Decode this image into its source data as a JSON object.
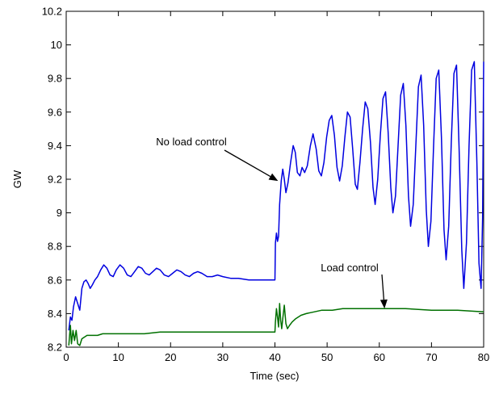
{
  "chart_data": {
    "type": "line",
    "title": "",
    "xlabel": "Time (sec)",
    "ylabel": "GW",
    "xlim": [
      0,
      80
    ],
    "ylim": [
      8.2,
      10.2
    ],
    "xticks": [
      "0",
      "10",
      "20",
      "30",
      "40",
      "50",
      "60",
      "70",
      "80"
    ],
    "yticks": [
      "8.2",
      "8.4",
      "8.6",
      "8.8",
      "9",
      "9.2",
      "9.4",
      "9.6",
      "9.8",
      "10",
      "10.2"
    ],
    "grid": false,
    "annotations": [
      {
        "text": "No load control",
        "target_series": "no_load_control",
        "point": [
          40.6,
          9.19
        ]
      },
      {
        "text": "Load control",
        "target_series": "load_control",
        "point": [
          61,
          8.43
        ]
      }
    ],
    "series": [
      {
        "key": "no_load_control",
        "color": "#0000e0",
        "points": [
          [
            0.5,
            8.3
          ],
          [
            0.8,
            8.38
          ],
          [
            1.1,
            8.36
          ],
          [
            1.4,
            8.44
          ],
          [
            1.8,
            8.5
          ],
          [
            2.2,
            8.46
          ],
          [
            2.6,
            8.42
          ],
          [
            3.0,
            8.55
          ],
          [
            3.4,
            8.59
          ],
          [
            3.8,
            8.6
          ],
          [
            4.2,
            8.58
          ],
          [
            4.6,
            8.55
          ],
          [
            5.0,
            8.57
          ],
          [
            5.5,
            8.6
          ],
          [
            6.0,
            8.62
          ],
          [
            6.6,
            8.66
          ],
          [
            7.2,
            8.69
          ],
          [
            7.8,
            8.67
          ],
          [
            8.4,
            8.63
          ],
          [
            9.0,
            8.62
          ],
          [
            9.6,
            8.66
          ],
          [
            10.3,
            8.69
          ],
          [
            11.0,
            8.67
          ],
          [
            11.7,
            8.63
          ],
          [
            12.4,
            8.62
          ],
          [
            13.1,
            8.65
          ],
          [
            13.8,
            8.68
          ],
          [
            14.5,
            8.67
          ],
          [
            15.2,
            8.64
          ],
          [
            15.9,
            8.63
          ],
          [
            16.6,
            8.65
          ],
          [
            17.3,
            8.67
          ],
          [
            18.0,
            8.66
          ],
          [
            18.8,
            8.63
          ],
          [
            19.6,
            8.62
          ],
          [
            20.4,
            8.64
          ],
          [
            21.2,
            8.66
          ],
          [
            22.0,
            8.65
          ],
          [
            22.8,
            8.63
          ],
          [
            23.6,
            8.62
          ],
          [
            24.4,
            8.64
          ],
          [
            25.2,
            8.65
          ],
          [
            26.0,
            8.64
          ],
          [
            27.0,
            8.62
          ],
          [
            28.0,
            8.62
          ],
          [
            29.0,
            8.63
          ],
          [
            30.0,
            8.62
          ],
          [
            31.5,
            8.61
          ],
          [
            33.0,
            8.61
          ],
          [
            35.0,
            8.6
          ],
          [
            37.0,
            8.6
          ],
          [
            39.0,
            8.6
          ],
          [
            40.0,
            8.6
          ],
          [
            40.1,
            8.82
          ],
          [
            40.3,
            8.88
          ],
          [
            40.5,
            8.83
          ],
          [
            40.7,
            8.86
          ],
          [
            40.9,
            9.05
          ],
          [
            41.2,
            9.19
          ],
          [
            41.5,
            9.26
          ],
          [
            41.8,
            9.2
          ],
          [
            42.1,
            9.12
          ],
          [
            42.5,
            9.18
          ],
          [
            43.0,
            9.3
          ],
          [
            43.5,
            9.4
          ],
          [
            43.9,
            9.36
          ],
          [
            44.3,
            9.24
          ],
          [
            44.8,
            9.22
          ],
          [
            45.2,
            9.27
          ],
          [
            45.7,
            9.24
          ],
          [
            46.2,
            9.28
          ],
          [
            46.8,
            9.4
          ],
          [
            47.3,
            9.47
          ],
          [
            47.9,
            9.38
          ],
          [
            48.4,
            9.25
          ],
          [
            48.9,
            9.22
          ],
          [
            49.4,
            9.3
          ],
          [
            49.9,
            9.45
          ],
          [
            50.4,
            9.55
          ],
          [
            50.9,
            9.58
          ],
          [
            51.4,
            9.46
          ],
          [
            51.9,
            9.27
          ],
          [
            52.4,
            9.19
          ],
          [
            52.9,
            9.28
          ],
          [
            53.4,
            9.45
          ],
          [
            53.9,
            9.6
          ],
          [
            54.4,
            9.57
          ],
          [
            54.9,
            9.38
          ],
          [
            55.4,
            9.17
          ],
          [
            55.8,
            9.14
          ],
          [
            56.3,
            9.3
          ],
          [
            56.8,
            9.5
          ],
          [
            57.3,
            9.66
          ],
          [
            57.8,
            9.62
          ],
          [
            58.3,
            9.42
          ],
          [
            58.8,
            9.15
          ],
          [
            59.2,
            9.05
          ],
          [
            59.7,
            9.2
          ],
          [
            60.2,
            9.46
          ],
          [
            60.7,
            9.68
          ],
          [
            61.2,
            9.72
          ],
          [
            61.7,
            9.48
          ],
          [
            62.2,
            9.15
          ],
          [
            62.6,
            9.0
          ],
          [
            63.1,
            9.1
          ],
          [
            63.6,
            9.4
          ],
          [
            64.1,
            9.7
          ],
          [
            64.6,
            9.77
          ],
          [
            65.1,
            9.52
          ],
          [
            65.6,
            9.1
          ],
          [
            66.0,
            8.92
          ],
          [
            66.5,
            9.05
          ],
          [
            67.0,
            9.4
          ],
          [
            67.5,
            9.75
          ],
          [
            68.0,
            9.82
          ],
          [
            68.5,
            9.52
          ],
          [
            69.0,
            9.02
          ],
          [
            69.4,
            8.8
          ],
          [
            69.9,
            8.95
          ],
          [
            70.4,
            9.4
          ],
          [
            70.9,
            9.8
          ],
          [
            71.4,
            9.85
          ],
          [
            71.9,
            9.45
          ],
          [
            72.4,
            8.9
          ],
          [
            72.8,
            8.72
          ],
          [
            73.3,
            8.92
          ],
          [
            73.8,
            9.42
          ],
          [
            74.3,
            9.83
          ],
          [
            74.8,
            9.88
          ],
          [
            75.3,
            9.38
          ],
          [
            75.8,
            8.78
          ],
          [
            76.2,
            8.55
          ],
          [
            76.7,
            8.82
          ],
          [
            77.2,
            9.4
          ],
          [
            77.7,
            9.85
          ],
          [
            78.2,
            9.9
          ],
          [
            78.7,
            9.3
          ],
          [
            79.1,
            8.7
          ],
          [
            79.5,
            8.55
          ],
          [
            79.8,
            8.97
          ],
          [
            80.0,
            9.9
          ]
        ]
      },
      {
        "key": "load_control",
        "color": "#007000",
        "points": [
          [
            0.5,
            8.21
          ],
          [
            0.8,
            8.33
          ],
          [
            1.0,
            8.22
          ],
          [
            1.3,
            8.3
          ],
          [
            1.6,
            8.24
          ],
          [
            1.9,
            8.3
          ],
          [
            2.2,
            8.22
          ],
          [
            2.6,
            8.21
          ],
          [
            3.0,
            8.25
          ],
          [
            3.5,
            8.26
          ],
          [
            4.0,
            8.27
          ],
          [
            5.0,
            8.27
          ],
          [
            6.0,
            8.27
          ],
          [
            7.0,
            8.28
          ],
          [
            8.0,
            8.28
          ],
          [
            10.0,
            8.28
          ],
          [
            12.0,
            8.28
          ],
          [
            15.0,
            8.28
          ],
          [
            18.0,
            8.29
          ],
          [
            22.0,
            8.29
          ],
          [
            26.0,
            8.29
          ],
          [
            30.0,
            8.29
          ],
          [
            34.0,
            8.29
          ],
          [
            38.0,
            8.29
          ],
          [
            40.0,
            8.29
          ],
          [
            40.1,
            8.35
          ],
          [
            40.3,
            8.43
          ],
          [
            40.5,
            8.38
          ],
          [
            40.7,
            8.32
          ],
          [
            40.9,
            8.46
          ],
          [
            41.1,
            8.36
          ],
          [
            41.3,
            8.31
          ],
          [
            41.5,
            8.37
          ],
          [
            41.8,
            8.45
          ],
          [
            42.1,
            8.34
          ],
          [
            42.4,
            8.31
          ],
          [
            42.8,
            8.33
          ],
          [
            43.3,
            8.35
          ],
          [
            44.0,
            8.37
          ],
          [
            45.0,
            8.39
          ],
          [
            46.0,
            8.4
          ],
          [
            47.5,
            8.41
          ],
          [
            49.0,
            8.42
          ],
          [
            51.0,
            8.42
          ],
          [
            53.0,
            8.43
          ],
          [
            56.0,
            8.43
          ],
          [
            60.0,
            8.43
          ],
          [
            65.0,
            8.43
          ],
          [
            70.0,
            8.42
          ],
          [
            75.0,
            8.42
          ],
          [
            80.0,
            8.41
          ]
        ]
      }
    ]
  }
}
